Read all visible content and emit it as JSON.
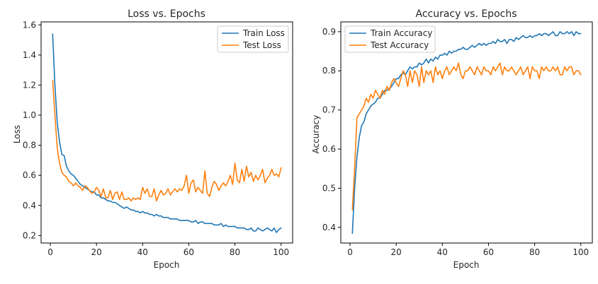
{
  "chart_data": [
    {
      "type": "line",
      "title": "Loss vs. Epochs",
      "xlabel": "Epoch",
      "ylabel": "Loss",
      "xlim": [
        -4,
        105
      ],
      "ylim": [
        0.15,
        1.62
      ],
      "xticks": [
        0,
        20,
        40,
        60,
        80,
        100
      ],
      "yticks": [
        0.2,
        0.4,
        0.6,
        0.8,
        1.0,
        1.2,
        1.4,
        1.6
      ],
      "ytick_labels": [
        "0.2",
        "0.4",
        "0.6",
        "0.8",
        "1.0",
        "1.2",
        "1.4",
        "1.6"
      ],
      "legend_position": "top-right",
      "grid": false,
      "x": [
        1,
        2,
        3,
        4,
        5,
        6,
        7,
        8,
        9,
        10,
        11,
        12,
        13,
        14,
        15,
        16,
        17,
        18,
        19,
        20,
        21,
        22,
        23,
        24,
        25,
        26,
        27,
        28,
        29,
        30,
        31,
        32,
        33,
        34,
        35,
        36,
        37,
        38,
        39,
        40,
        41,
        42,
        43,
        44,
        45,
        46,
        47,
        48,
        49,
        50,
        51,
        52,
        53,
        54,
        55,
        56,
        57,
        58,
        59,
        60,
        61,
        62,
        63,
        64,
        65,
        66,
        67,
        68,
        69,
        70,
        71,
        72,
        73,
        74,
        75,
        76,
        77,
        78,
        79,
        80,
        81,
        82,
        83,
        84,
        85,
        86,
        87,
        88,
        89,
        90,
        91,
        92,
        93,
        94,
        95,
        96,
        97,
        98,
        99,
        100
      ],
      "series": [
        {
          "name": "Train Loss",
          "color": "#1f77b4",
          "values": [
            1.54,
            1.2,
            0.95,
            0.82,
            0.74,
            0.73,
            0.66,
            0.63,
            0.61,
            0.6,
            0.58,
            0.56,
            0.54,
            0.53,
            0.52,
            0.51,
            0.5,
            0.49,
            0.49,
            0.47,
            0.47,
            0.45,
            0.45,
            0.44,
            0.43,
            0.43,
            0.42,
            0.42,
            0.41,
            0.4,
            0.39,
            0.38,
            0.39,
            0.38,
            0.37,
            0.37,
            0.36,
            0.36,
            0.35,
            0.36,
            0.35,
            0.35,
            0.34,
            0.34,
            0.33,
            0.34,
            0.33,
            0.33,
            0.32,
            0.32,
            0.32,
            0.31,
            0.31,
            0.31,
            0.31,
            0.3,
            0.3,
            0.3,
            0.3,
            0.3,
            0.29,
            0.29,
            0.3,
            0.28,
            0.29,
            0.29,
            0.28,
            0.28,
            0.28,
            0.28,
            0.27,
            0.27,
            0.27,
            0.28,
            0.26,
            0.27,
            0.26,
            0.26,
            0.26,
            0.26,
            0.25,
            0.25,
            0.25,
            0.25,
            0.24,
            0.24,
            0.25,
            0.23,
            0.23,
            0.25,
            0.24,
            0.23,
            0.24,
            0.25,
            0.24,
            0.23,
            0.25,
            0.22,
            0.24,
            0.25
          ]
        },
        {
          "name": "Test Loss",
          "color": "#ff7f0e",
          "values": [
            1.23,
            1.0,
            0.78,
            0.68,
            0.62,
            0.6,
            0.59,
            0.56,
            0.55,
            0.53,
            0.55,
            0.53,
            0.52,
            0.5,
            0.53,
            0.52,
            0.5,
            0.48,
            0.49,
            0.52,
            0.5,
            0.46,
            0.51,
            0.45,
            0.45,
            0.5,
            0.44,
            0.48,
            0.49,
            0.44,
            0.49,
            0.44,
            0.44,
            0.45,
            0.43,
            0.45,
            0.44,
            0.45,
            0.44,
            0.52,
            0.48,
            0.51,
            0.46,
            0.46,
            0.51,
            0.43,
            0.47,
            0.5,
            0.47,
            0.48,
            0.51,
            0.47,
            0.49,
            0.51,
            0.49,
            0.51,
            0.5,
            0.53,
            0.6,
            0.48,
            0.55,
            0.57,
            0.49,
            0.52,
            0.5,
            0.48,
            0.63,
            0.48,
            0.46,
            0.52,
            0.56,
            0.54,
            0.5,
            0.53,
            0.55,
            0.53,
            0.56,
            0.6,
            0.54,
            0.68,
            0.57,
            0.55,
            0.64,
            0.56,
            0.66,
            0.59,
            0.62,
            0.56,
            0.6,
            0.57,
            0.6,
            0.64,
            0.55,
            0.58,
            0.6,
            0.64,
            0.6,
            0.61,
            0.59,
            0.65
          ]
        }
      ]
    },
    {
      "type": "line",
      "title": "Accuracy vs. Epochs",
      "xlabel": "Epoch",
      "ylabel": "Accuracy",
      "xlim": [
        -4,
        105
      ],
      "ylim": [
        0.36,
        0.925
      ],
      "xticks": [
        0,
        20,
        40,
        60,
        80,
        100
      ],
      "yticks": [
        0.4,
        0.5,
        0.6,
        0.7,
        0.8,
        0.9
      ],
      "ytick_labels": [
        "0.4",
        "0.5",
        "0.6",
        "0.7",
        "0.8",
        "0.9"
      ],
      "legend_position": "top-left",
      "grid": false,
      "x": [
        1,
        2,
        3,
        4,
        5,
        6,
        7,
        8,
        9,
        10,
        11,
        12,
        13,
        14,
        15,
        16,
        17,
        18,
        19,
        20,
        21,
        22,
        23,
        24,
        25,
        26,
        27,
        28,
        29,
        30,
        31,
        32,
        33,
        34,
        35,
        36,
        37,
        38,
        39,
        40,
        41,
        42,
        43,
        44,
        45,
        46,
        47,
        48,
        49,
        50,
        51,
        52,
        53,
        54,
        55,
        56,
        57,
        58,
        59,
        60,
        61,
        62,
        63,
        64,
        65,
        66,
        67,
        68,
        69,
        70,
        71,
        72,
        73,
        74,
        75,
        76,
        77,
        78,
        79,
        80,
        81,
        82,
        83,
        84,
        85,
        86,
        87,
        88,
        89,
        90,
        91,
        92,
        93,
        94,
        95,
        96,
        97,
        98,
        99,
        100
      ],
      "series": [
        {
          "name": "Train Accuracy",
          "color": "#1f77b4",
          "values": [
            0.385,
            0.5,
            0.58,
            0.63,
            0.66,
            0.67,
            0.69,
            0.7,
            0.71,
            0.715,
            0.72,
            0.73,
            0.73,
            0.74,
            0.75,
            0.75,
            0.755,
            0.76,
            0.77,
            0.78,
            0.78,
            0.79,
            0.795,
            0.79,
            0.8,
            0.81,
            0.805,
            0.81,
            0.81,
            0.82,
            0.815,
            0.82,
            0.83,
            0.82,
            0.83,
            0.825,
            0.835,
            0.83,
            0.84,
            0.84,
            0.845,
            0.84,
            0.85,
            0.845,
            0.85,
            0.85,
            0.855,
            0.855,
            0.86,
            0.855,
            0.855,
            0.86,
            0.865,
            0.86,
            0.865,
            0.87,
            0.865,
            0.87,
            0.865,
            0.87,
            0.87,
            0.875,
            0.87,
            0.88,
            0.875,
            0.875,
            0.88,
            0.87,
            0.88,
            0.88,
            0.875,
            0.885,
            0.88,
            0.885,
            0.89,
            0.885,
            0.885,
            0.89,
            0.885,
            0.89,
            0.89,
            0.895,
            0.89,
            0.895,
            0.895,
            0.89,
            0.895,
            0.9,
            0.89,
            0.89,
            0.9,
            0.895,
            0.895,
            0.9,
            0.895,
            0.9,
            0.89,
            0.9,
            0.895,
            0.895
          ]
        },
        {
          "name": "Test Accuracy",
          "color": "#ff7f0e",
          "values": [
            0.445,
            0.55,
            0.68,
            0.69,
            0.7,
            0.71,
            0.73,
            0.72,
            0.74,
            0.73,
            0.75,
            0.74,
            0.73,
            0.75,
            0.74,
            0.76,
            0.75,
            0.77,
            0.78,
            0.77,
            0.76,
            0.78,
            0.8,
            0.79,
            0.76,
            0.8,
            0.77,
            0.8,
            0.79,
            0.76,
            0.81,
            0.77,
            0.8,
            0.79,
            0.8,
            0.77,
            0.81,
            0.79,
            0.8,
            0.78,
            0.8,
            0.81,
            0.79,
            0.8,
            0.81,
            0.8,
            0.82,
            0.79,
            0.78,
            0.8,
            0.8,
            0.81,
            0.8,
            0.79,
            0.81,
            0.8,
            0.79,
            0.81,
            0.8,
            0.8,
            0.79,
            0.81,
            0.8,
            0.81,
            0.82,
            0.79,
            0.81,
            0.8,
            0.8,
            0.81,
            0.8,
            0.79,
            0.8,
            0.81,
            0.79,
            0.8,
            0.81,
            0.78,
            0.81,
            0.8,
            0.8,
            0.78,
            0.81,
            0.8,
            0.81,
            0.8,
            0.8,
            0.81,
            0.8,
            0.81,
            0.79,
            0.79,
            0.81,
            0.8,
            0.81,
            0.81,
            0.79,
            0.8,
            0.8,
            0.79
          ]
        }
      ]
    }
  ]
}
